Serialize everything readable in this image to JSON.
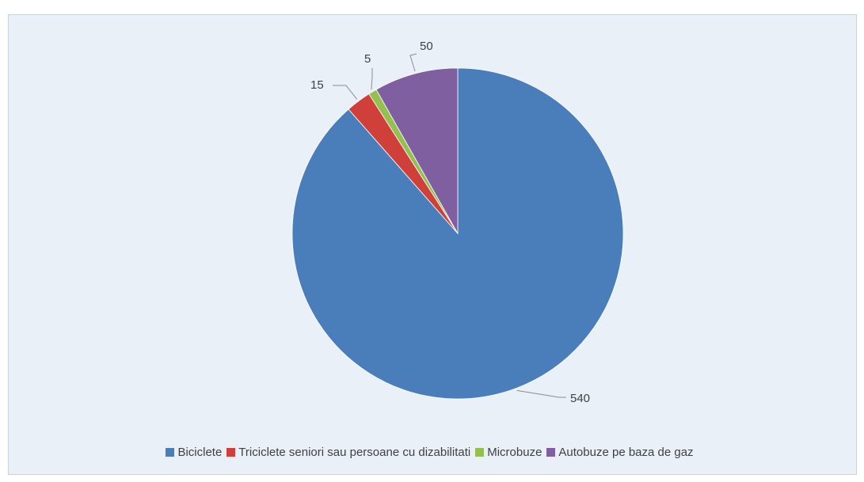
{
  "chart_data": {
    "type": "pie",
    "title": "",
    "categories": [
      "Biciclete",
      "Triciclete seniori sau persoane cu dizabilitati",
      "Microbuze",
      "Autobuze pe baza de  gaz"
    ],
    "values": [
      540,
      15,
      5,
      50
    ],
    "colors": [
      "#4a7ebb",
      "#d0403a",
      "#94c052",
      "#7f5f9f"
    ],
    "data_labels": [
      "540",
      "15",
      "5",
      "50"
    ],
    "legend_position": "bottom",
    "start_angle": "12 o'clock",
    "direction": "clockwise"
  },
  "colors": {
    "plot_background": "#eaf0f8",
    "border": "#c8d3e2"
  }
}
